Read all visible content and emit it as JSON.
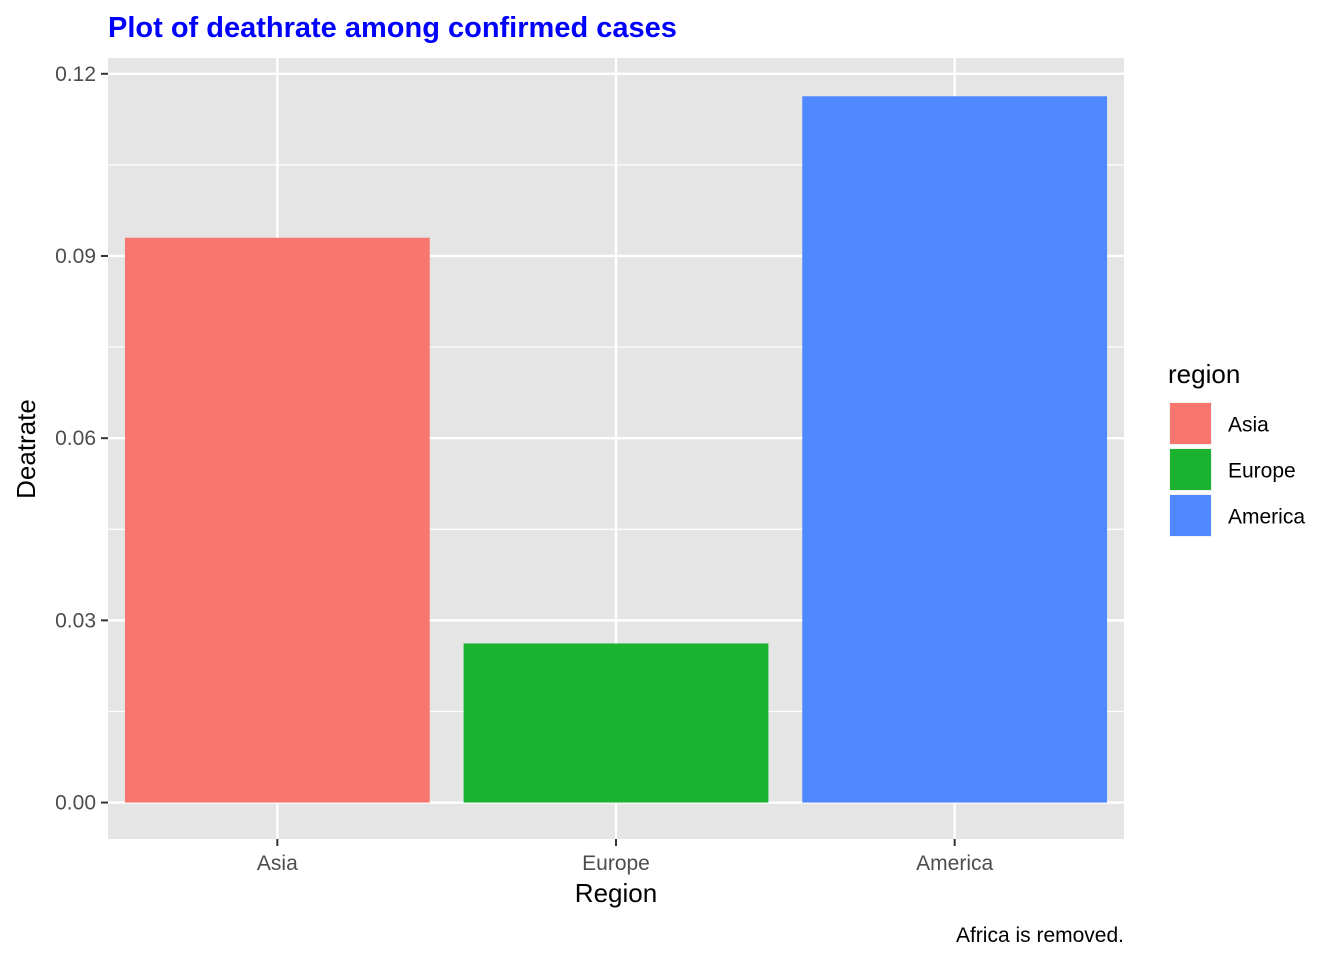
{
  "chart_data": {
    "type": "bar",
    "title": "Plot of deathrate among confirmed cases",
    "title_color": "#0000FF",
    "xlabel": "Region",
    "ylabel": "Deatrate",
    "caption": "Africa is removed.",
    "categories": [
      "Asia",
      "Europe",
      "America"
    ],
    "values": [
      0.093,
      0.0262,
      0.1163
    ],
    "colors": [
      "#F8766D",
      "#1AB22F",
      "#4F88FF"
    ],
    "ylim": [
      -0.006,
      0.1226
    ],
    "yticks": [
      0,
      0.03,
      0.06,
      0.09,
      0.12
    ],
    "ytick_labels": [
      "0.00",
      "0.03",
      "0.06",
      "0.09",
      "0.12"
    ],
    "grid": true,
    "panel_background": "#E5E5E5",
    "legend": {
      "title": "region",
      "position": "right",
      "items": [
        "Asia",
        "Europe",
        "America"
      ]
    }
  }
}
